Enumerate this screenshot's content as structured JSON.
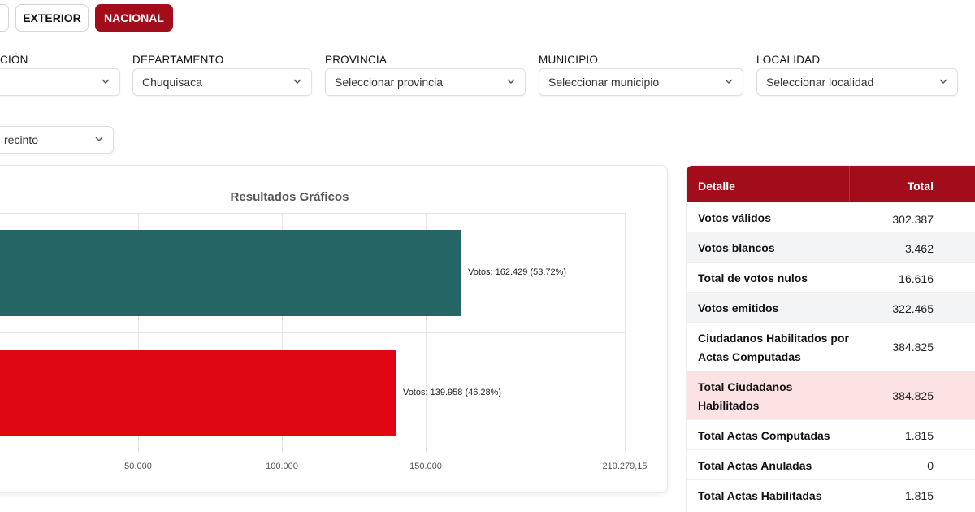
{
  "tabs": {
    "exterior": "EXTERIOR",
    "nacional": "NACIONAL"
  },
  "filters": {
    "f1": {
      "label": "CIÓN",
      "value": ""
    },
    "departamento": {
      "label": "DEPARTAMENTO",
      "value": "Chuquisaca"
    },
    "provincia": {
      "label": "PROVINCIA",
      "value": "Seleccionar provincia"
    },
    "municipio": {
      "label": "MUNICIPIO",
      "value": "Seleccionar municipio"
    },
    "localidad": {
      "label": "LOCALIDAD",
      "value": "Seleccionar localidad"
    },
    "recinto": {
      "value": "recinto"
    }
  },
  "chart_data": {
    "type": "bar",
    "orientation": "horizontal",
    "title": "Resultados Gráficos",
    "series": [
      {
        "value": 162429,
        "label": "Votos: 162.429 (53.72%)",
        "color": "#256566"
      },
      {
        "value": 139958,
        "label": "Votos: 139.958 (46.28%)",
        "color": "#e10613"
      }
    ],
    "ticks": [
      "50.000",
      "100.000",
      "150.000",
      "219.279,15"
    ],
    "tick_values": [
      50000,
      100000,
      150000,
      219279.15
    ]
  },
  "table": {
    "header": {
      "detalle": "Detalle",
      "total": "Total"
    },
    "rows": [
      {
        "label": "Votos válidos",
        "value": "302.387"
      },
      {
        "label": "Votos blancos",
        "value": "3.462"
      },
      {
        "label": "Total de votos nulos",
        "value": "16.616"
      },
      {
        "label": "Votos emitidos",
        "value": "322.465"
      },
      {
        "label": "Ciudadanos Habilitados por Actas Computadas",
        "value": "384.825"
      },
      {
        "label": "Total Ciudadanos Habilitados",
        "value": "384.825"
      },
      {
        "label": "Total Actas Computadas",
        "value": "1.815"
      },
      {
        "label": "Total Actas Anuladas",
        "value": "0"
      },
      {
        "label": "Total Actas Habilitadas",
        "value": "1.815"
      }
    ]
  }
}
